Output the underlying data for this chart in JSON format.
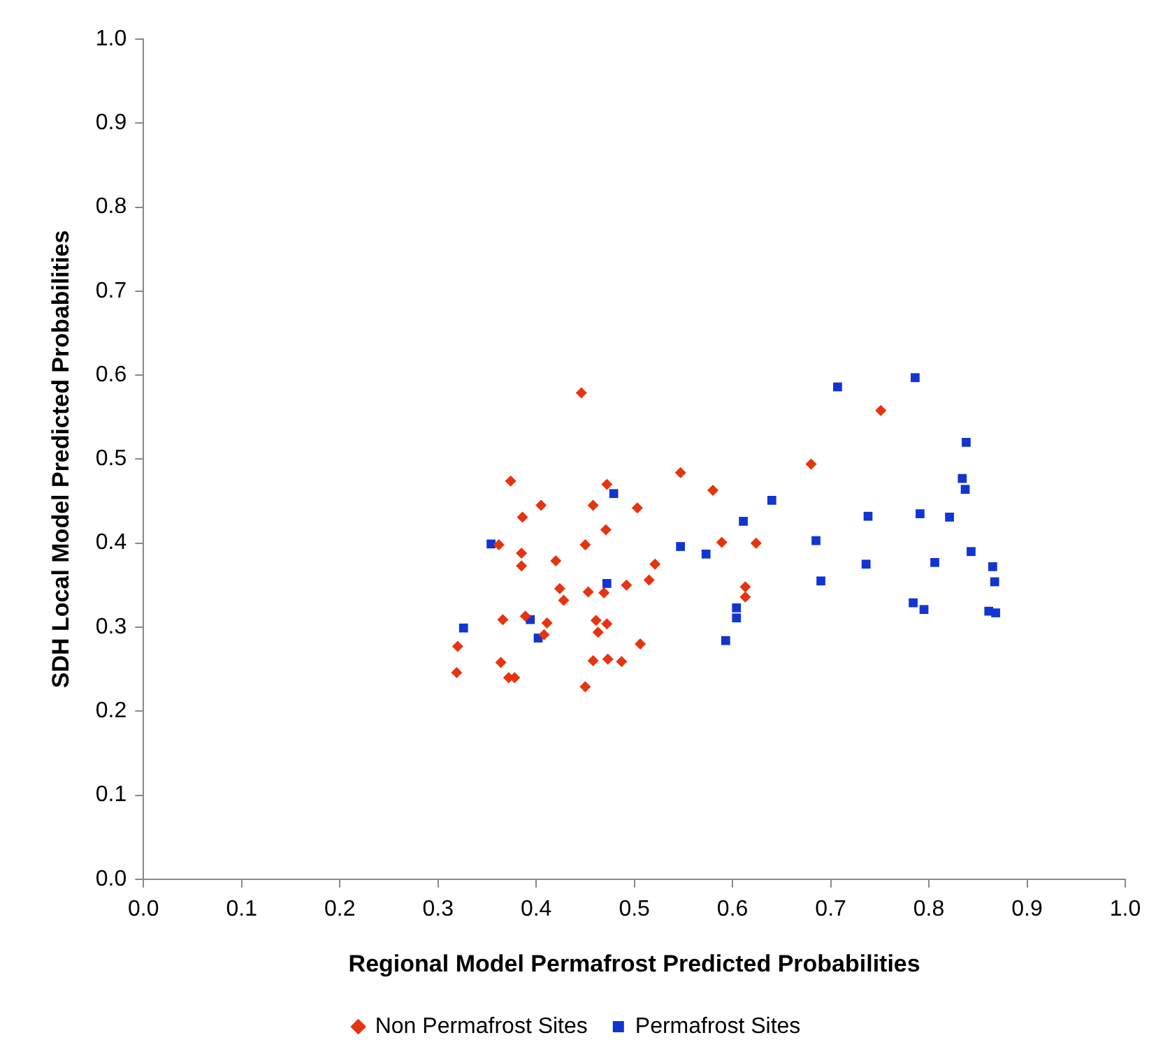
{
  "chart_data": {
    "type": "scatter",
    "xlabel": "Regional Model Permafrost Predicted Probabilities",
    "ylabel": "SDH Local Model Predicted Probabilities",
    "xlim": [
      0,
      1
    ],
    "ylim": [
      0,
      1
    ],
    "xticks": [
      {
        "value": 0,
        "label": "0.0"
      },
      {
        "value": 0.1,
        "label": "0.1"
      },
      {
        "value": 0.2,
        "label": "0.2"
      },
      {
        "value": 0.3,
        "label": "0.3"
      },
      {
        "value": 0.4,
        "label": "0.4"
      },
      {
        "value": 0.5,
        "label": "0.5"
      },
      {
        "value": 0.6,
        "label": "0.6"
      },
      {
        "value": 0.7,
        "label": "0.7"
      },
      {
        "value": 0.8,
        "label": "0.8"
      },
      {
        "value": 0.9,
        "label": "0.9"
      },
      {
        "value": 1,
        "label": "1.0"
      }
    ],
    "yticks": [
      {
        "value": 0,
        "label": "0.0"
      },
      {
        "value": 0.1,
        "label": "0.1"
      },
      {
        "value": 0.2,
        "label": "0.2"
      },
      {
        "value": 0.3,
        "label": "0.3"
      },
      {
        "value": 0.4,
        "label": "0.4"
      },
      {
        "value": 0.5,
        "label": "0.5"
      },
      {
        "value": 0.6,
        "label": "0.6"
      },
      {
        "value": 0.7,
        "label": "0.7"
      },
      {
        "value": 0.8,
        "label": "0.8"
      },
      {
        "value": 0.9,
        "label": "0.9"
      },
      {
        "value": 1,
        "label": "1.0"
      }
    ],
    "grid": false,
    "legend": "bottom",
    "series": [
      {
        "name": "Non Permafrost Sites",
        "color": "#e8330f",
        "marker": "diamond",
        "x": [
          0.446,
          0.374,
          0.472,
          0.547,
          0.58,
          0.405,
          0.386,
          0.458,
          0.503,
          0.471,
          0.362,
          0.45,
          0.589,
          0.385,
          0.385,
          0.42,
          0.521,
          0.515,
          0.424,
          0.428,
          0.453,
          0.469,
          0.492,
          0.366,
          0.389,
          0.411,
          0.461,
          0.472,
          0.408,
          0.463,
          0.506,
          0.32,
          0.319,
          0.364,
          0.372,
          0.378,
          0.458,
          0.473,
          0.487,
          0.45,
          0.751,
          0.68,
          0.624,
          0.613,
          0.613
        ],
        "values": [
          0.579,
          0.474,
          0.47,
          0.484,
          0.463,
          0.445,
          0.431,
          0.445,
          0.442,
          0.416,
          0.398,
          0.398,
          0.401,
          0.388,
          0.373,
          0.379,
          0.375,
          0.356,
          0.346,
          0.332,
          0.342,
          0.341,
          0.35,
          0.309,
          0.313,
          0.305,
          0.308,
          0.304,
          0.291,
          0.294,
          0.28,
          0.277,
          0.246,
          0.258,
          0.24,
          0.24,
          0.26,
          0.262,
          0.259,
          0.229,
          0.558,
          0.494,
          0.4,
          0.348,
          0.336
        ]
      },
      {
        "name": "Permafrost Sites",
        "color": "#1035d0",
        "marker": "square",
        "x": [
          0.479,
          0.354,
          0.547,
          0.573,
          0.472,
          0.326,
          0.394,
          0.402,
          0.593,
          0.604,
          0.604,
          0.611,
          0.707,
          0.786,
          0.838,
          0.834,
          0.837,
          0.64,
          0.738,
          0.791,
          0.821,
          0.685,
          0.736,
          0.806,
          0.843,
          0.69,
          0.865,
          0.867,
          0.784,
          0.795,
          0.861,
          0.868
        ],
        "values": [
          0.459,
          0.399,
          0.396,
          0.387,
          0.352,
          0.299,
          0.309,
          0.287,
          0.284,
          0.323,
          0.311,
          0.426,
          0.586,
          0.597,
          0.52,
          0.477,
          0.464,
          0.451,
          0.432,
          0.435,
          0.431,
          0.403,
          0.375,
          0.377,
          0.39,
          0.355,
          0.372,
          0.354,
          0.329,
          0.321,
          0.319,
          0.317
        ]
      }
    ]
  }
}
